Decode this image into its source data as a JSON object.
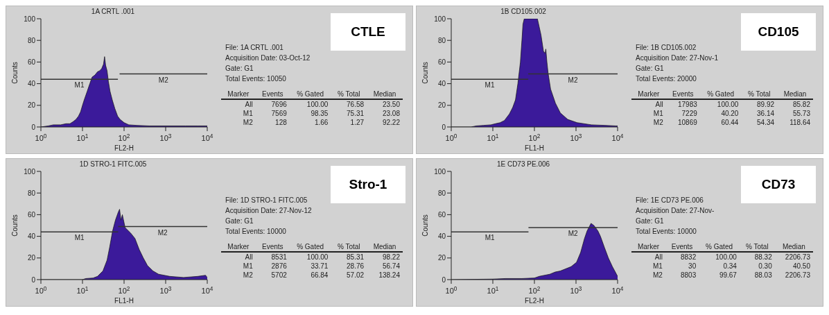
{
  "chart_data": [
    {
      "type": "area",
      "title": "1A CRTL .001",
      "xlabel": "FL2-H",
      "ylabel": "Counts",
      "log": "x",
      "xlim": [
        1,
        10000
      ],
      "xticks": [
        {
          "value": 1,
          "label": "10$^{0}$"
        },
        {
          "value": 10,
          "label": "10$^{1}$"
        },
        {
          "value": 100,
          "label": "10$^{2}$"
        },
        {
          "value": 1000,
          "label": "10$^{3}$"
        },
        {
          "value": 10000,
          "label": "10$^{4}$"
        }
      ],
      "ylim": [
        0,
        100
      ],
      "yticks": [
        0,
        20,
        40,
        60,
        80,
        100
      ],
      "series": [
        {
          "type": "area",
          "color": "#3b1a9a",
          "x": [
            1,
            1.5,
            2,
            3,
            4,
            5,
            6,
            7,
            8,
            9,
            10,
            11,
            13,
            15,
            17,
            20,
            23,
            26,
            29,
            32,
            34,
            36,
            39,
            42,
            46,
            52,
            60,
            70,
            80,
            100,
            130,
            200,
            400,
            1000,
            3000,
            6000,
            10000
          ],
          "values": [
            0,
            1,
            2,
            2,
            3,
            3,
            5,
            7,
            10,
            14,
            20,
            25,
            33,
            40,
            46,
            48,
            51,
            52,
            54,
            58,
            65,
            57,
            52,
            42,
            33,
            25,
            17,
            10,
            7,
            4,
            2,
            1.5,
            1,
            1,
            1,
            1,
            1
          ]
        },
        {
          "type": "line",
          "name": "M1",
          "color": "#333333",
          "x": [
            1,
            71
          ],
          "values": [
            44,
            44
          ]
        },
        {
          "type": "line",
          "name": "M2",
          "color": "#333333",
          "x": [
            78,
            10000
          ],
          "values": [
            49,
            49
          ]
        }
      ]
    },
    {
      "type": "other",
      "title": "CTLE",
      "annotations": [
        "File: 1A CRTL .001",
        "Acquisition Date: 03-Oct-12",
        "Gate: G1",
        "Total Events: 10050",
        "Marker",
        "Events",
        "% Gated",
        "% Total",
        "Median",
        "All",
        "7696",
        "100.00",
        "76.58",
        "23.50",
        "M1",
        "7569",
        "98.35",
        "75.31",
        "23.08",
        "M2",
        "128",
        "1.66",
        "1.27",
        "92.22"
      ]
    },
    {
      "type": "area",
      "title": "1B CD105.002",
      "xlabel": "FL1-H",
      "ylabel": "Counts",
      "log": "x",
      "xlim": [
        1,
        10000
      ],
      "xticks": [
        {
          "value": 1,
          "label": "10$^{0}$"
        },
        {
          "value": 10,
          "label": "10$^{1}$"
        },
        {
          "value": 100,
          "label": "10$^{2}$"
        },
        {
          "value": 1000,
          "label": "10$^{3}$"
        },
        {
          "value": 10000,
          "label": "10$^{4}$"
        }
      ],
      "ylim": [
        0,
        100
      ],
      "yticks": [
        0,
        20,
        40,
        60,
        80,
        100
      ],
      "series": [
        {
          "type": "area",
          "color": "#3b1a9a",
          "x": [
            1,
            3,
            4,
            6,
            9,
            11.5,
            15,
            19,
            25,
            30,
            35,
            40,
            46,
            50,
            53,
            57,
            70,
            90,
            118,
            144,
            165,
            180,
            188,
            200,
            213,
            245,
            320,
            420,
            630,
            1060,
            2350,
            5000,
            9000,
            10000
          ],
          "values": [
            0,
            0,
            1,
            1.5,
            2,
            3,
            4,
            6,
            12,
            18,
            25,
            40,
            60,
            80,
            95,
            100,
            100,
            100,
            100,
            85,
            70,
            68,
            72,
            60,
            50,
            35,
            22,
            13,
            7,
            4,
            2,
            1.5,
            1,
            1
          ]
        },
        {
          "type": "line",
          "name": "M1",
          "color": "#333333",
          "x": [
            1,
            71
          ],
          "values": [
            44,
            44
          ]
        },
        {
          "type": "line",
          "name": "M2",
          "color": "#333333",
          "x": [
            71,
            10000
          ],
          "values": [
            49,
            49
          ]
        }
      ]
    },
    {
      "type": "other",
      "title": "CD105",
      "annotations": [
        "File: 1B CD105.002",
        "Acquisition Date: 27-Nov-1",
        "Gate: G1",
        "Total Events: 20000",
        "Marker",
        "Events",
        "% Gated",
        "% Total",
        "Median",
        "All",
        "17983",
        "100.00",
        "89.92",
        "85.82",
        "M1",
        "7229",
        "40.20",
        "36.14",
        "55.73",
        "M2",
        "10869",
        "60.44",
        "54.34",
        "118.64"
      ]
    },
    {
      "type": "area",
      "title": "1D STRO-1 FITC.005",
      "xlabel": "FL1-H",
      "ylabel": "Counts",
      "log": "x",
      "xlim": [
        1,
        10000
      ],
      "xticks": [
        {
          "value": 1,
          "label": "10$^{0}$"
        },
        {
          "value": 10,
          "label": "10$^{1}$"
        },
        {
          "value": 100,
          "label": "10$^{2}$"
        },
        {
          "value": 1000,
          "label": "10$^{3}$"
        },
        {
          "value": 10000,
          "label": "10$^{4}$"
        }
      ],
      "ylim": [
        0,
        100
      ],
      "yticks": [
        0,
        20,
        40,
        60,
        80,
        100
      ],
      "series": [
        {
          "type": "area",
          "color": "#3b1a9a",
          "x": [
            1,
            10,
            12,
            18,
            23,
            31,
            39,
            45,
            53,
            62,
            72,
            78,
            84,
            91,
            106,
            144,
            183,
            230,
            290,
            365,
            495,
            675,
            1250,
            2700,
            5900,
            9100,
            10000
          ],
          "values": [
            0,
            0,
            1,
            1.5,
            3,
            8,
            18,
            30,
            45,
            55,
            62,
            65,
            55,
            60,
            48,
            43,
            38,
            28,
            20,
            13,
            8,
            5,
            3,
            2,
            3,
            4,
            2
          ]
        },
        {
          "type": "line",
          "name": "M1",
          "color": "#333333",
          "x": [
            1,
            72
          ],
          "values": [
            44,
            44
          ]
        },
        {
          "type": "line",
          "name": "M2",
          "color": "#333333",
          "x": [
            72,
            10000
          ],
          "values": [
            49,
            49
          ]
        }
      ]
    },
    {
      "type": "other",
      "title": "Stro-1",
      "annotations": [
        "File: 1D STRO-1 FITC.005",
        "Acquisition Date: 27-Nov-12",
        "Gate: G1",
        "Total Events: 10000",
        "Marker",
        "Events",
        "% Gated",
        "% Total",
        "Median",
        "All",
        "8531",
        "100.00",
        "85.31",
        "98.22",
        "M1",
        "2876",
        "33.71",
        "28.76",
        "56.74",
        "M2",
        "5702",
        "66.84",
        "57.02",
        "138.24"
      ]
    },
    {
      "type": "area",
      "title": "1E CD73 PE.006",
      "xlabel": "FL2-H",
      "ylabel": "Counts",
      "log": "x",
      "xlim": [
        1,
        10000
      ],
      "xticks": [
        {
          "value": 1,
          "label": "10$^{0}$"
        },
        {
          "value": 10,
          "label": "10$^{1}$"
        },
        {
          "value": 100,
          "label": "10$^{2}$"
        },
        {
          "value": 1000,
          "label": "10$^{3}$"
        },
        {
          "value": 10000,
          "label": "10$^{4}$"
        }
      ],
      "ylim": [
        0,
        100
      ],
      "yticks": [
        0,
        20,
        40,
        60,
        80,
        100
      ],
      "series": [
        {
          "type": "area",
          "color": "#3b1a9a",
          "x": [
            1,
            10,
            20,
            50,
            100,
            130,
            235,
            315,
            420,
            765,
            1030,
            1290,
            1600,
            1850,
            2300,
            2700,
            3360,
            3870,
            4800,
            6000,
            7500,
            9400,
            10000
          ],
          "values": [
            0,
            0.5,
            1,
            1,
            1.5,
            3,
            5,
            7,
            8,
            12,
            16,
            25,
            38,
            45,
            52,
            50,
            45,
            40,
            30,
            20,
            12,
            5,
            3
          ]
        },
        {
          "type": "line",
          "name": "M1",
          "color": "#333333",
          "x": [
            1,
            72
          ],
          "values": [
            44,
            44
          ]
        },
        {
          "type": "line",
          "name": "M2",
          "color": "#333333",
          "x": [
            72,
            10000
          ],
          "values": [
            48,
            48
          ]
        }
      ]
    },
    {
      "type": "other",
      "title": "CD73",
      "annotations": [
        "File: 1E CD73 PE.006",
        "Acquisition Date: 27-Nov-",
        "Gate: G1",
        "Total Events: 10000",
        "Marker",
        "Events",
        "% Gated",
        "% Total",
        "Median",
        "All",
        "8832",
        "100.00",
        "88.32",
        "2206.73",
        "M1",
        "30",
        "0.34",
        "0.30",
        "40.50",
        "M2",
        "8803",
        "99.67",
        "88.03",
        "2206.73"
      ]
    }
  ]
}
